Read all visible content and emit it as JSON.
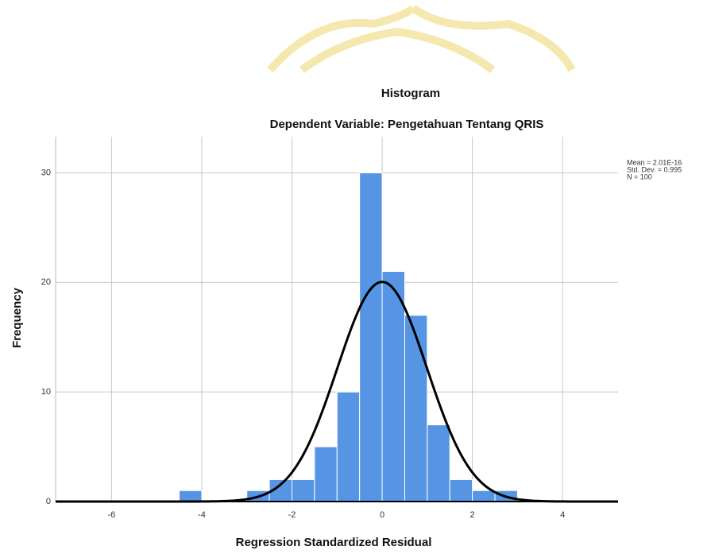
{
  "chart_data": {
    "type": "histogram",
    "title": "Histogram",
    "subtitle": "Dependent Variable: Pengetahuan Tentang QRIS",
    "x_label": "Regression Standardized Residual",
    "y_label": "Frequency",
    "bins": [
      -4.5,
      -4,
      -3.5,
      -3,
      -2.5,
      -2,
      -1.5,
      -1,
      -0.5,
      0,
      0.5,
      1,
      1.5,
      2,
      2.5,
      3
    ],
    "counts": [
      1,
      0,
      0,
      1,
      2,
      2,
      5,
      10,
      30,
      21,
      17,
      7,
      2,
      1,
      1
    ],
    "color": "#5595e4",
    "curve_color": "#000000",
    "stats": [
      {
        "value": 2.01e-16,
        "label": "Mean = 2.01E-16"
      },
      {
        "value": 0.995,
        "label": "Std. Dev. = 0.995"
      },
      {
        "value": 100,
        "label": "N = 100"
      }
    ],
    "xlim": [
      -7.24,
      5.23
    ],
    "ylim": [
      0,
      33.3
    ],
    "xticks": [
      -6,
      -4,
      -2,
      0,
      2,
      4
    ],
    "yticks": [
      0,
      10,
      20,
      30
    ],
    "grid": true
  }
}
